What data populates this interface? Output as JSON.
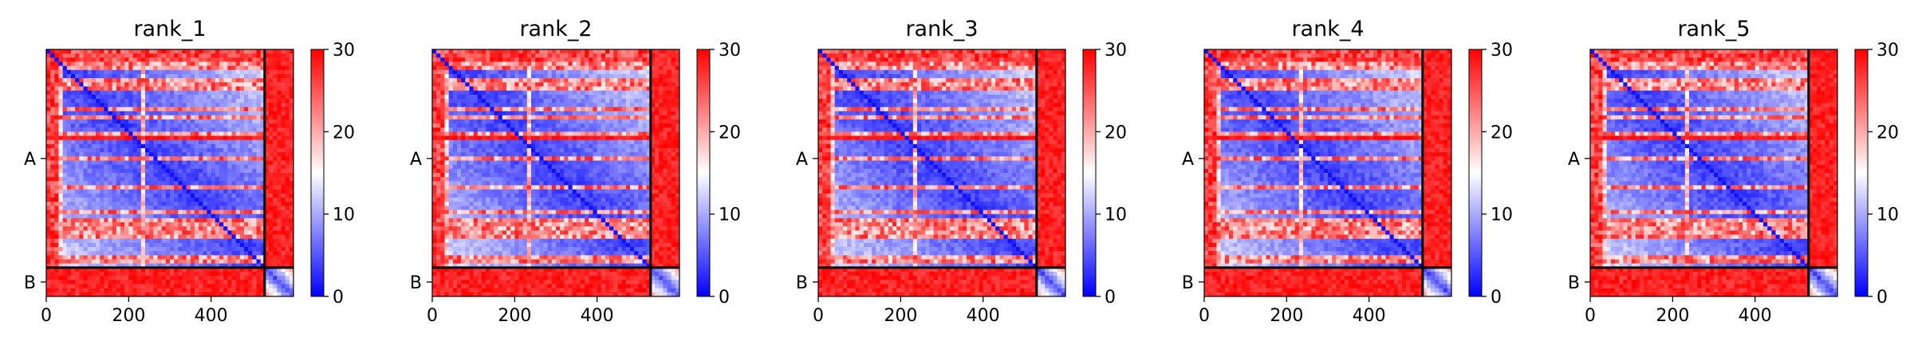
{
  "chart_data": {
    "type": "heatmap",
    "panels": [
      {
        "title": "rank_1"
      },
      {
        "title": "rank_2"
      },
      {
        "title": "rank_3"
      },
      {
        "title": "rank_4"
      },
      {
        "title": "rank_5"
      }
    ],
    "chains": [
      {
        "label": "A",
        "start": 0,
        "end": 530
      },
      {
        "label": "B",
        "start": 530,
        "end": 600
      }
    ],
    "residue_count": 600,
    "x_ticks": [
      0,
      200,
      400
    ],
    "colorbar": {
      "min": 0,
      "max": 30,
      "ticks": [
        0,
        10,
        20,
        30
      ],
      "colors": [
        "#0000ff",
        "#ffffff",
        "#ff0000"
      ]
    },
    "grid": false
  }
}
